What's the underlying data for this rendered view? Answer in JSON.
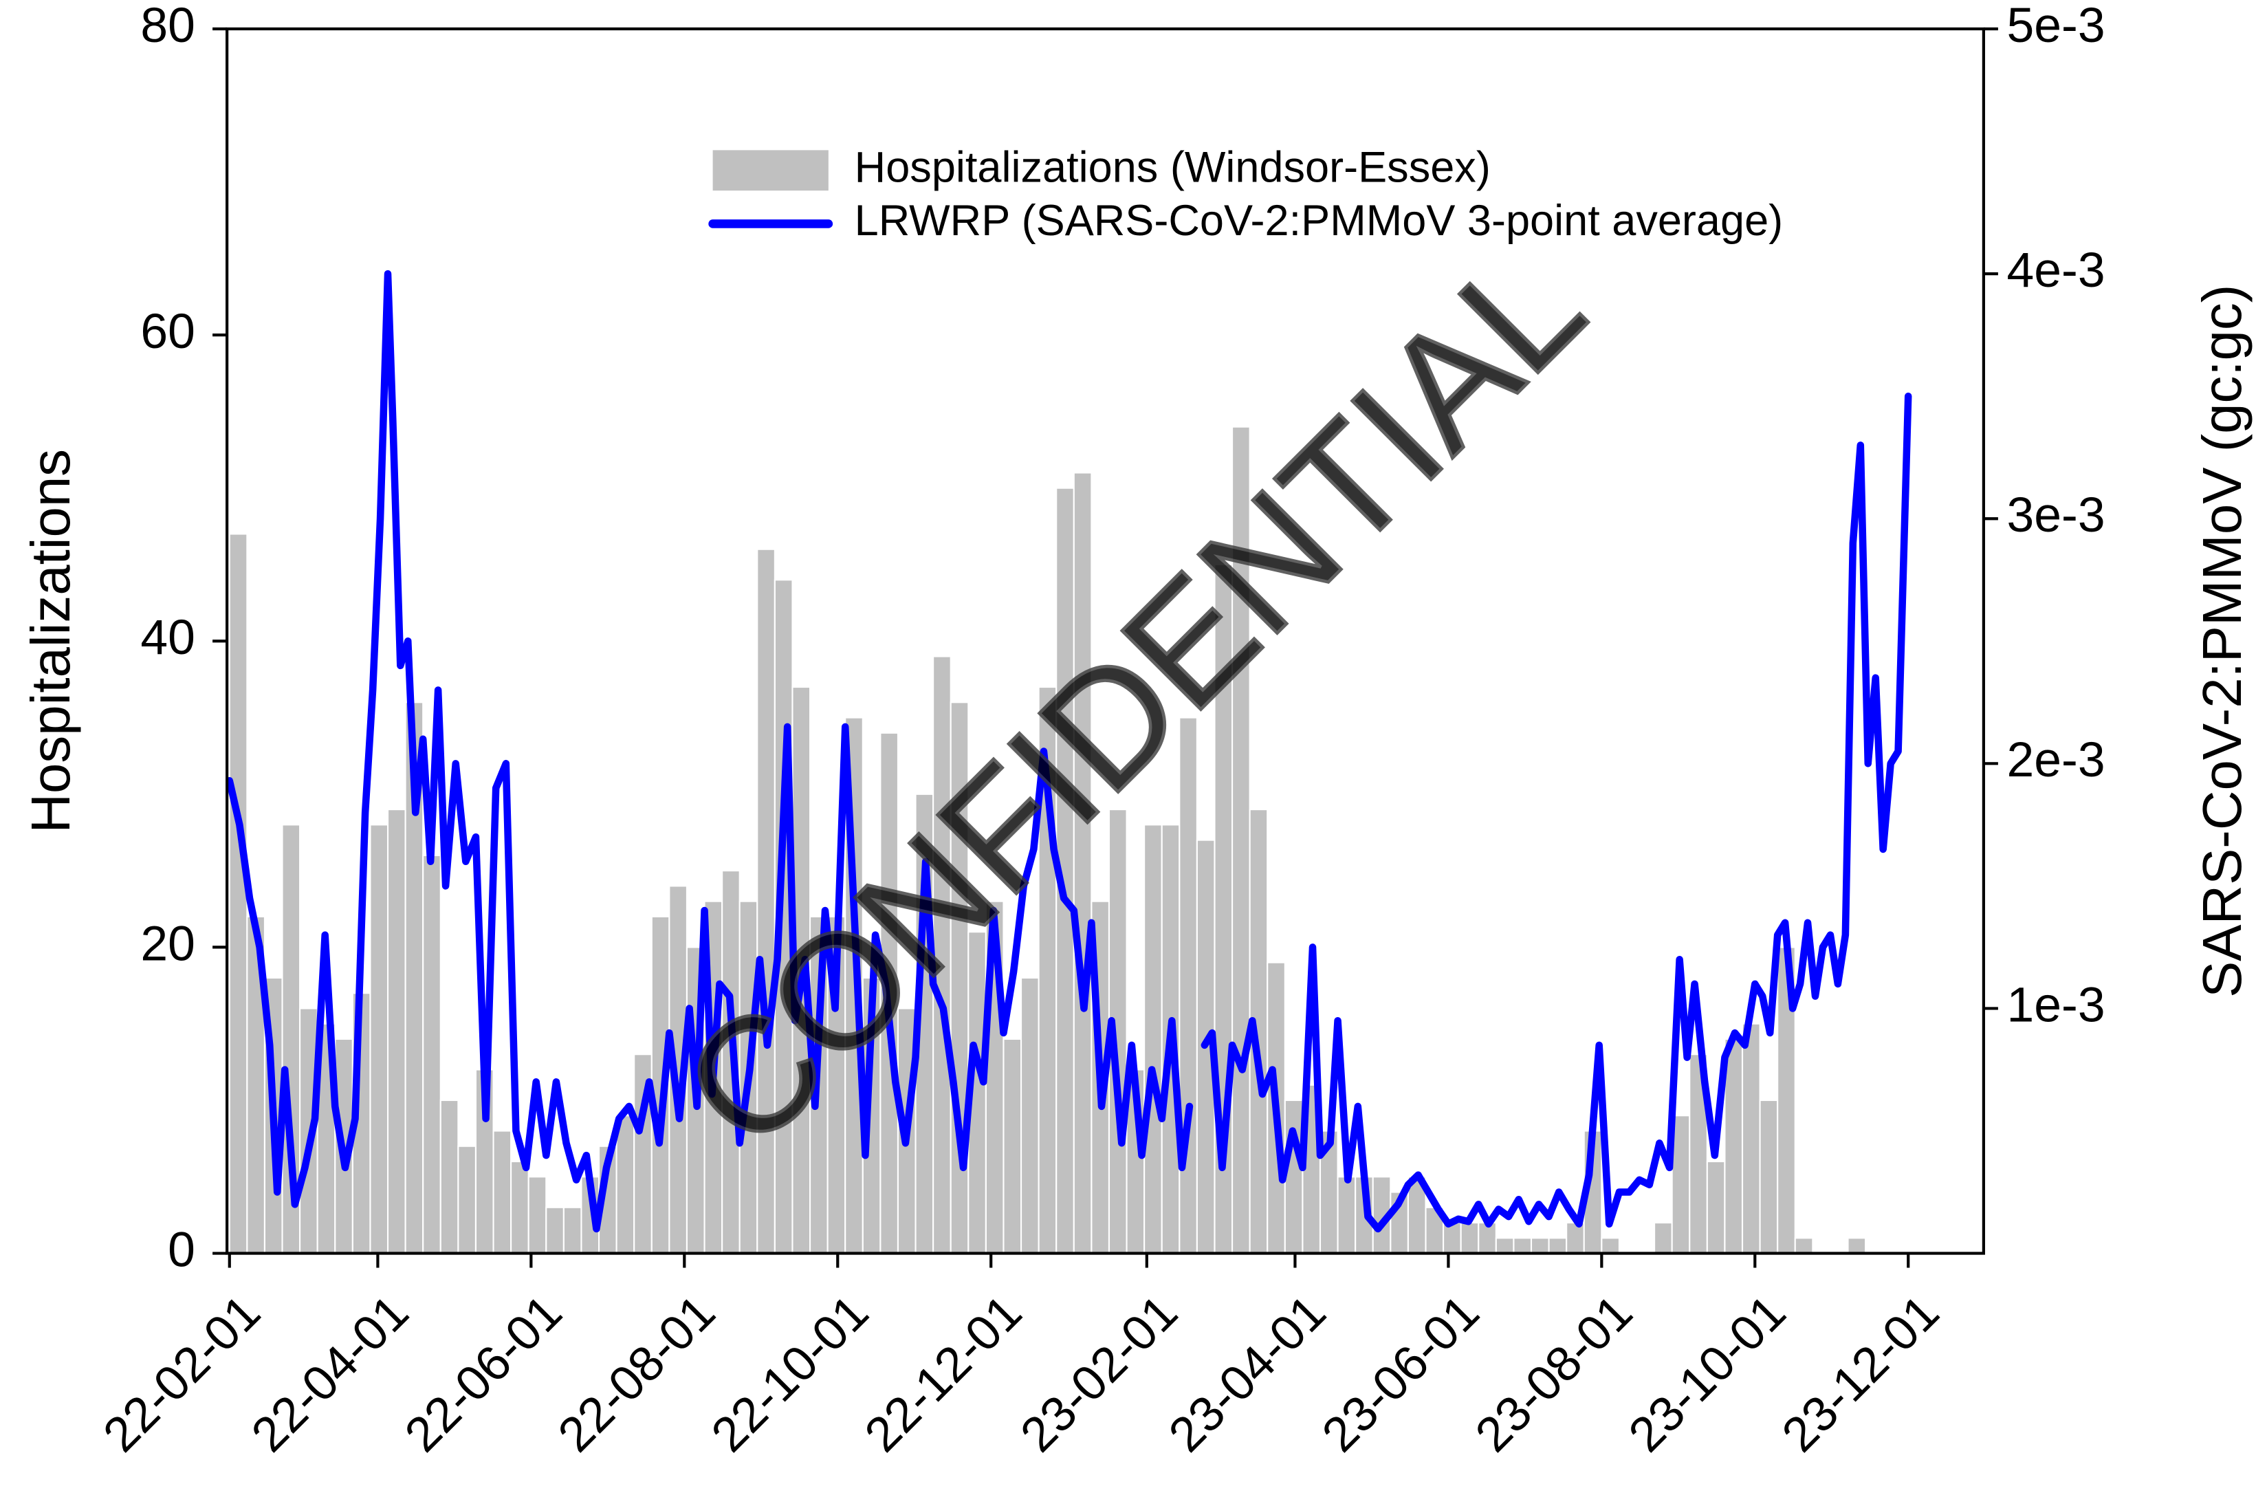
{
  "chart_data": {
    "type": "bar-line",
    "y_label": "Hospitalizations",
    "y2_label": "SARS-CoV-2:PMMoV (gc:gc)",
    "watermark": "CONFIDENTIAL",
    "xlim": [
      "22-01-31",
      "23-12-31"
    ],
    "xticks": [
      "22-02-01",
      "22-04-01",
      "22-06-01",
      "22-08-01",
      "22-10-01",
      "22-12-01",
      "23-02-01",
      "23-04-01",
      "23-06-01",
      "23-08-01",
      "23-10-01",
      "23-12-01"
    ],
    "ylim": [
      0,
      80
    ],
    "yticks": [
      0,
      20,
      40,
      60,
      80
    ],
    "y2lim": [
      0,
      0.005
    ],
    "y2ticks": [
      {
        "value": 0.001,
        "label": "1e-3"
      },
      {
        "value": 0.002,
        "label": "2e-3"
      },
      {
        "value": 0.003,
        "label": "3e-3"
      },
      {
        "value": 0.004,
        "label": "4e-3"
      },
      {
        "value": 0.005,
        "label": "5e-3"
      }
    ],
    "legend": "top",
    "series": [
      {
        "name": "Hospitalizations (Windsor-Essex)",
        "type": "bar",
        "color": "#c0c0c0",
        "x": [
          "22-02-01",
          "22-02-08",
          "22-02-15",
          "22-02-22",
          "22-03-01",
          "22-03-08",
          "22-03-15",
          "22-03-22",
          "22-03-29",
          "22-04-05",
          "22-04-12",
          "22-04-19",
          "22-04-26",
          "22-05-03",
          "22-05-10",
          "22-05-17",
          "22-05-24",
          "22-05-31",
          "22-06-07",
          "22-06-14",
          "22-06-21",
          "22-06-28",
          "22-07-05",
          "22-07-12",
          "22-07-19",
          "22-07-26",
          "22-08-02",
          "22-08-09",
          "22-08-16",
          "22-08-23",
          "22-08-30",
          "22-09-06",
          "22-09-13",
          "22-09-20",
          "22-09-27",
          "22-10-04",
          "22-10-11",
          "22-10-18",
          "22-10-25",
          "22-11-01",
          "22-11-08",
          "22-11-15",
          "22-11-22",
          "22-11-29",
          "22-12-06",
          "22-12-13",
          "22-12-20",
          "22-12-27",
          "23-01-03",
          "23-01-10",
          "23-01-17",
          "23-01-24",
          "23-01-31",
          "23-02-07",
          "23-02-14",
          "23-02-21",
          "23-02-28",
          "23-03-07",
          "23-03-14",
          "23-03-21",
          "23-03-28",
          "23-04-04",
          "23-04-11",
          "23-04-18",
          "23-04-25",
          "23-05-02",
          "23-05-09",
          "23-05-16",
          "23-05-23",
          "23-05-30",
          "23-06-06",
          "23-06-13",
          "23-06-20",
          "23-06-27",
          "23-07-04",
          "23-07-11",
          "23-07-18",
          "23-07-25",
          "23-08-01",
          "23-08-08",
          "23-08-15",
          "23-08-22",
          "23-08-29",
          "23-09-05",
          "23-09-12",
          "23-09-19",
          "23-09-26",
          "23-10-03",
          "23-10-10",
          "23-10-17",
          "23-10-24",
          "23-10-31",
          "23-11-07",
          "23-11-14",
          "23-11-21",
          "23-11-28"
        ],
        "values": [
          47,
          22,
          18,
          28,
          16,
          15,
          14,
          17,
          28,
          29,
          36,
          26,
          10,
          7,
          12,
          8,
          6,
          5,
          3,
          3,
          5,
          7,
          9,
          13,
          22,
          24,
          20,
          23,
          25,
          23,
          46,
          44,
          37,
          22,
          22,
          35,
          18,
          34,
          16,
          30,
          39,
          36,
          21,
          23,
          14,
          18,
          37,
          50,
          51,
          23,
          29,
          12,
          28,
          28,
          35,
          27,
          45,
          54,
          29,
          19,
          10,
          11,
          8,
          5,
          5,
          5,
          4,
          5,
          3,
          2,
          2,
          2,
          1,
          1,
          1,
          1,
          2,
          8,
          1,
          0,
          0,
          2,
          9,
          13,
          6,
          14,
          15,
          10,
          20,
          1,
          0,
          0,
          1,
          0,
          0,
          0
        ]
      },
      {
        "name": "LRWRP (SARS-CoV-2:PMMoV 3-point average)",
        "type": "line",
        "axis": "y2",
        "color": "#0000ff",
        "x": [
          "22-02-01",
          "22-02-05",
          "22-02-09",
          "22-02-13",
          "22-02-17",
          "22-02-20",
          "22-02-23",
          "22-02-27",
          "22-03-03",
          "22-03-07",
          "22-03-11",
          "22-03-15",
          "22-03-19",
          "22-03-23",
          "22-03-27",
          "22-03-30",
          "22-04-02",
          "22-04-05",
          "22-04-07",
          "22-04-10",
          "22-04-13",
          "22-04-16",
          "22-04-19",
          "22-04-22",
          "22-04-25",
          "22-04-28",
          "22-05-02",
          "22-05-06",
          "22-05-10",
          "22-05-14",
          "22-05-18",
          "22-05-22",
          "22-05-26",
          "22-05-30",
          "22-06-03",
          "22-06-07",
          "22-06-11",
          "22-06-15",
          "22-06-19",
          "22-06-23",
          "22-06-27",
          "22-07-01",
          "22-07-06",
          "22-07-10",
          "22-07-14",
          "22-07-18",
          "22-07-22",
          "22-07-26",
          "22-07-30",
          "22-08-03",
          "22-08-06",
          "22-08-09",
          "22-08-12",
          "22-08-15",
          "22-08-19",
          "22-08-23",
          "22-08-27",
          "22-08-31",
          "22-09-03",
          "22-09-07",
          "22-09-11",
          "22-09-14",
          "22-09-18",
          "22-09-22",
          "22-09-26",
          "22-09-30",
          "22-10-04",
          "22-10-08",
          "22-10-12",
          "22-10-16",
          "22-10-20",
          "22-10-24",
          "22-10-28",
          "22-11-01",
          "22-11-05",
          "22-11-08",
          "22-11-12",
          "22-11-16",
          "22-11-20",
          "22-11-24",
          "22-11-28",
          "22-12-02",
          "22-12-06",
          "22-12-10",
          "22-12-14",
          "22-12-18",
          "22-12-22",
          "22-12-26",
          "22-12-30",
          "23-01-03",
          "23-01-07",
          "23-01-10",
          "23-01-14",
          "23-01-18",
          "23-01-22",
          "23-01-26",
          "23-01-30",
          "23-02-03",
          "23-02-07",
          "23-02-11",
          "23-02-15",
          "23-02-18",
          "23-02-21",
          "23-02-24",
          "23-02-27",
          "23-03-03",
          "23-03-07",
          "23-03-11",
          "23-03-15",
          "23-03-19",
          "23-03-23",
          "23-03-27",
          "23-03-31",
          "23-04-04",
          "23-04-08",
          "23-04-11",
          "23-04-15",
          "23-04-18",
          "23-04-22",
          "23-04-26",
          "23-04-30",
          "23-05-04",
          "23-05-08",
          "23-05-12",
          "23-05-16",
          "23-05-20",
          "23-05-24",
          "23-05-28",
          "23-06-01",
          "23-06-05",
          "23-06-09",
          "23-06-13",
          "23-06-17",
          "23-06-21",
          "23-06-25",
          "23-06-29",
          "23-07-03",
          "23-07-07",
          "23-07-11",
          "23-07-15",
          "23-07-19",
          "23-07-23",
          "23-07-27",
          "23-07-31",
          "23-08-04",
          "23-08-08",
          "23-08-12",
          "23-08-16",
          "23-08-20",
          "23-08-24",
          "23-08-28",
          "23-09-01",
          "23-09-04",
          "23-09-07",
          "23-09-11",
          "23-09-15",
          "23-09-19",
          "23-09-23",
          "23-09-27",
          "23-10-01",
          "23-10-04",
          "23-10-07",
          "23-10-10",
          "23-10-13",
          "23-10-16",
          "23-10-19",
          "23-10-22",
          "23-10-25",
          "23-10-28",
          "23-10-31",
          "23-11-03",
          "23-11-06",
          "23-11-09",
          "23-11-12",
          "23-11-15",
          "23-11-18",
          "23-11-21",
          "23-11-24",
          "23-11-27",
          "23-12-01"
        ],
        "values": [
          0.00193,
          0.00175,
          0.00145,
          0.00125,
          0.00085,
          0.00025,
          0.00075,
          0.0002,
          0.00035,
          0.00055,
          0.0013,
          0.0006,
          0.00035,
          0.00055,
          0.0018,
          0.0023,
          0.003,
          0.004,
          0.0034,
          0.0024,
          0.0025,
          0.0018,
          0.0021,
          0.0016,
          0.0023,
          0.0015,
          0.002,
          0.0016,
          0.0017,
          0.00055,
          0.0019,
          0.002,
          0.0005,
          0.00035,
          0.0007,
          0.0004,
          0.0007,
          0.00045,
          0.0003,
          0.0004,
          0.0001,
          0.00035,
          0.00055,
          0.0006,
          0.0005,
          0.0007,
          0.00045,
          0.0009,
          0.00055,
          0.001,
          0.0006,
          0.0014,
          0.00065,
          0.0011,
          0.00105,
          0.00045,
          0.00075,
          0.0012,
          0.00085,
          0.0012,
          0.00215,
          0.00095,
          0.0012,
          0.0006,
          0.0014,
          0.001,
          0.00215,
          0.0013,
          0.0004,
          0.0013,
          0.0011,
          0.0007,
          0.00045,
          0.0008,
          0.0016,
          0.0011,
          0.001,
          0.0007,
          0.00035,
          0.00085,
          0.0007,
          0.0014,
          0.0009,
          0.00115,
          0.0015,
          0.00165,
          0.00205,
          0.00165,
          0.00145,
          0.0014,
          0.001,
          0.00135,
          0.0006,
          0.00095,
          0.00045,
          0.00085,
          0.0004,
          0.00075,
          0.00055,
          0.00095,
          0.00035,
          0.0006,
          null,
          0.00085,
          0.0009,
          0.00035,
          0.00085,
          0.00075,
          0.00095,
          0.00065,
          0.00075,
          0.0003,
          0.0005,
          0.00035,
          0.00125,
          0.0004,
          0.00045,
          0.00095,
          0.0003,
          0.0006,
          0.00015,
          0.0001,
          0.00015,
          0.0002,
          0.00028,
          0.00032,
          0.00025,
          0.00018,
          0.00012,
          0.00014,
          0.00013,
          0.0002,
          0.00012,
          0.00018,
          0.00015,
          0.00022,
          0.00013,
          0.0002,
          0.00015,
          0.00025,
          0.00018,
          0.00012,
          0.00032,
          0.00085,
          0.00012,
          0.00025,
          0.00025,
          0.0003,
          0.00028,
          0.00045,
          0.00035,
          0.0012,
          0.0008,
          0.0011,
          0.0007,
          0.0004,
          0.0008,
          0.0009,
          0.00085,
          0.0011,
          0.00105,
          0.0009,
          0.0013,
          0.00135,
          0.001,
          0.0011,
          0.00135,
          0.00105,
          0.00125,
          0.0013,
          0.0011,
          0.0013,
          0.0029,
          0.0033,
          0.002,
          0.00235,
          0.00165,
          0.002,
          0.00205,
          0.0035
        ]
      }
    ]
  }
}
